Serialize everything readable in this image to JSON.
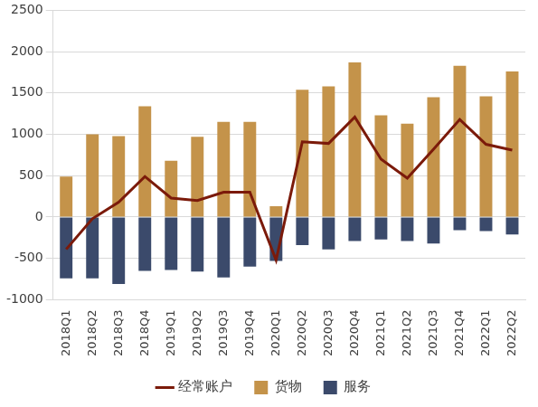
{
  "chart_data": {
    "type": "bar",
    "categories": [
      "2018Q1",
      "2018Q2",
      "2018Q3",
      "2018Q4",
      "2019Q1",
      "2019Q2",
      "2019Q3",
      "2019Q4",
      "2020Q1",
      "2020Q2",
      "2020Q3",
      "2020Q4",
      "2021Q1",
      "2021Q2",
      "2021Q3",
      "2021Q4",
      "2022Q1",
      "2022Q2"
    ],
    "series": [
      {
        "name": "货物",
        "type": "bar",
        "color": "#C4934A",
        "values": [
          490,
          1000,
          980,
          1340,
          680,
          970,
          1150,
          1150,
          130,
          1540,
          1580,
          1870,
          1230,
          1130,
          1450,
          1830,
          1460,
          1760
        ]
      },
      {
        "name": "服务",
        "type": "bar",
        "color": "#3B4A6B",
        "values": [
          -740,
          -740,
          -810,
          -650,
          -640,
          -660,
          -730,
          -600,
          -530,
          -340,
          -390,
          -290,
          -270,
          -290,
          -320,
          -160,
          -170,
          -210
        ]
      },
      {
        "name": "经常账户",
        "type": "line",
        "color": "#7B1A0A",
        "values": [
          -390,
          -20,
          180,
          490,
          230,
          200,
          300,
          300,
          -520,
          910,
          890,
          1210,
          700,
          470,
          820,
          1180,
          880,
          810
        ]
      }
    ],
    "ylim": [
      -1000,
      2500
    ],
    "yticks": [
      -1000,
      -500,
      0,
      500,
      1000,
      1500,
      2000,
      2500
    ],
    "stacked": true,
    "grid": true,
    "legend": "bottom"
  }
}
